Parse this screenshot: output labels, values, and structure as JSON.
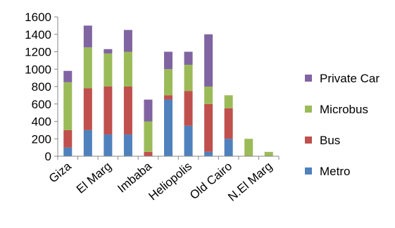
{
  "chart_data": {
    "type": "bar",
    "stacked": true,
    "categories": [
      "Giza",
      "",
      "El Marg",
      "",
      "Imbaba",
      "",
      "Heliopolis",
      "",
      "Old Cairo",
      "",
      "N.El Marg"
    ],
    "series": [
      {
        "name": "Metro",
        "color": "#4f81bd",
        "values": [
          100,
          300,
          250,
          250,
          0,
          650,
          350,
          50,
          200,
          0,
          0
        ]
      },
      {
        "name": "Bus",
        "color": "#c0504d",
        "values": [
          200,
          480,
          550,
          550,
          50,
          50,
          400,
          550,
          350,
          0,
          0
        ]
      },
      {
        "name": "Microbus",
        "color": "#9bbb59",
        "values": [
          550,
          470,
          380,
          400,
          350,
          300,
          300,
          200,
          150,
          200,
          50
        ]
      },
      {
        "name": "Private Car",
        "color": "#8064a2",
        "values": [
          130,
          250,
          50,
          250,
          250,
          200,
          150,
          600,
          0,
          0,
          0
        ]
      }
    ],
    "yticks": [
      0,
      200,
      400,
      600,
      800,
      1000,
      1200,
      1400,
      1600
    ],
    "ylim": [
      0,
      1600
    ],
    "grid": false,
    "legend_position": "right",
    "legend_order": [
      "Private Car",
      "Microbus",
      "Bus",
      "Metro"
    ]
  }
}
